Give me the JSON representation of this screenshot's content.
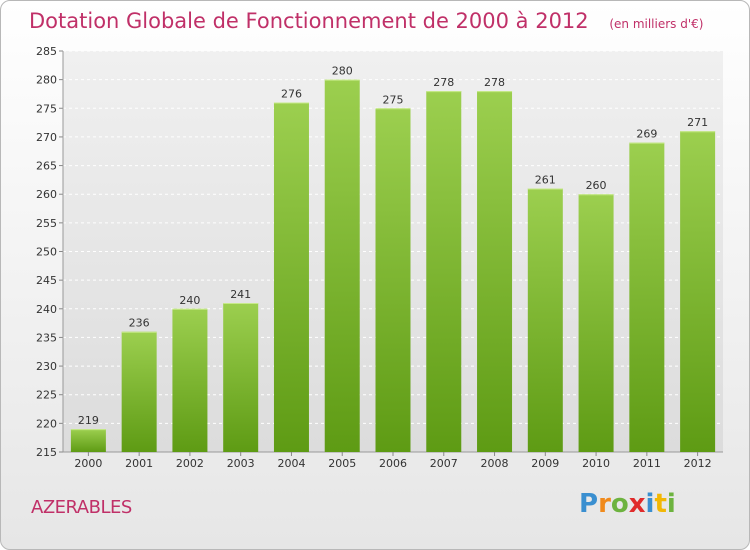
{
  "chart_data": {
    "type": "bar",
    "title": "Dotation Globale de Fonctionnement de 2000 à 2012",
    "subtitle": "(en milliers d'€)",
    "categories": [
      "2000",
      "2001",
      "2002",
      "2003",
      "2004",
      "2005",
      "2006",
      "2007",
      "2008",
      "2009",
      "2010",
      "2011",
      "2012"
    ],
    "values": [
      219,
      236,
      240,
      241,
      276,
      280,
      275,
      278,
      278,
      261,
      260,
      269,
      271
    ],
    "ylim": [
      215,
      285
    ],
    "yticks": [
      215,
      220,
      225,
      230,
      235,
      240,
      245,
      250,
      255,
      260,
      265,
      270,
      275,
      280,
      285
    ],
    "grid": true,
    "bar_color": "#8cc63f"
  },
  "commune": "AZERABLES",
  "logo": {
    "text": "Proxiti",
    "letters": [
      {
        "ch": "P",
        "color": "#3a8fd0"
      },
      {
        "ch": "r",
        "color": "#f08a1c"
      },
      {
        "ch": "o",
        "color": "#6db33f"
      },
      {
        "ch": "x",
        "color": "#e02b2b"
      },
      {
        "ch": "i",
        "color": "#3a8fd0"
      },
      {
        "ch": "t",
        "color": "#f2b705"
      },
      {
        "ch": "i",
        "color": "#6db33f"
      }
    ]
  }
}
